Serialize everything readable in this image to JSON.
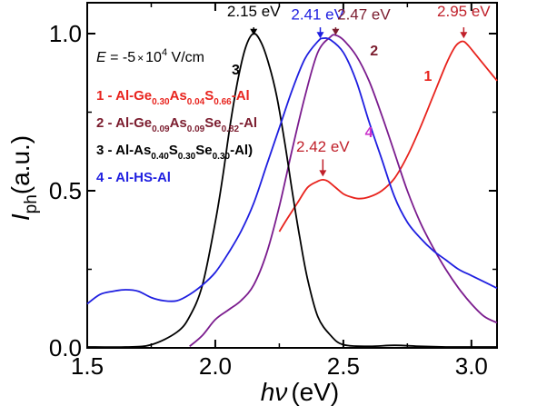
{
  "chart_data": {
    "type": "line",
    "xlabel_var": "hν",
    "xlabel_unit": "(eV)",
    "ylabel_var": "I",
    "ylabel_sub": "ph",
    "ylabel_unit": "(a.u.)",
    "xlim": [
      1.5,
      3.1
    ],
    "ylim": [
      0.0,
      1.05
    ],
    "x_ticks": [
      "1.5",
      "2.0",
      "2.5",
      "3.0"
    ],
    "y_ticks": [
      "0.0",
      "0.5",
      "1.0"
    ],
    "grid": false,
    "field_text": "E = -5 × 10⁴ V/cm",
    "field_parts": {
      "e": "E",
      "eq": " = -5",
      "times": "×",
      "base": "10",
      "exp": "4",
      "unit": " V/cm"
    },
    "legend": [
      {
        "color": "#e8231d",
        "parts": [
          "1 - Al-Ge",
          "0.30",
          "As",
          "0.04",
          "S",
          "0.66",
          "-Al"
        ]
      },
      {
        "color": "#7b1c2e",
        "parts": [
          "2 - Al-Ge",
          "0.09",
          "As",
          "0.09",
          "Se",
          "0.82",
          "-Al"
        ]
      },
      {
        "color": "#000000",
        "parts": [
          "3 - Al-As",
          "0.40",
          "S",
          "0.30",
          "Se",
          "0.30",
          "-Al)"
        ]
      },
      {
        "color": "#1f1fe0",
        "parts": [
          "4 - Al-HS-Al"
        ]
      }
    ],
    "curve_labels": [
      {
        "text": "1",
        "color": "#e8231d",
        "x": 2.83,
        "y": 0.85
      },
      {
        "text": "2",
        "color": "#7b1c2e",
        "x": 2.62,
        "y": 0.93
      },
      {
        "text": "3",
        "color": "#000000",
        "x": 2.08,
        "y": 0.87
      },
      {
        "text": "4",
        "color": "#cc33cc",
        "x": 2.6,
        "y": 0.67
      }
    ],
    "peak_labels": [
      {
        "text": "2.15 eV",
        "color": "#000000",
        "tx": 2.15,
        "ty": 1.055,
        "ax": 2.15,
        "ay_from": 1.02,
        "ay_to": 0.995
      },
      {
        "text": "2.41 eV",
        "color": "#1f1fe0",
        "tx": 2.4,
        "ty": 1.045,
        "ax": 2.41,
        "ay_from": 1.02,
        "ay_to": 0.985
      },
      {
        "text": "2.47 eV",
        "color": "#7b1c2e",
        "tx": 2.58,
        "ty": 1.045,
        "ax": 2.47,
        "ay_from": 1.02,
        "ay_to": 0.995
      },
      {
        "text": "2.95 eV",
        "color": "#c0202a",
        "tx": 2.97,
        "ty": 1.055,
        "ax": 2.97,
        "ay_from": 1.02,
        "ay_to": 0.985
      },
      {
        "text": "2.42 eV",
        "color": "#c0202a",
        "tx": 2.42,
        "ty": 0.625,
        "ax": 2.42,
        "ay_from": 0.6,
        "ay_to": 0.545
      }
    ],
    "series": [
      {
        "name": "1",
        "color": "#e8231d",
        "x": [
          2.25,
          2.28,
          2.32,
          2.36,
          2.4,
          2.42,
          2.44,
          2.47,
          2.5,
          2.53,
          2.56,
          2.6,
          2.65,
          2.7,
          2.75,
          2.8,
          2.85,
          2.9,
          2.93,
          2.95,
          2.97,
          2.99,
          3.02,
          3.05,
          3.08,
          3.1
        ],
        "y": [
          0.37,
          0.41,
          0.46,
          0.51,
          0.53,
          0.535,
          0.53,
          0.51,
          0.49,
          0.48,
          0.475,
          0.48,
          0.5,
          0.54,
          0.61,
          0.7,
          0.8,
          0.9,
          0.95,
          0.97,
          0.975,
          0.96,
          0.93,
          0.9,
          0.87,
          0.85
        ]
      },
      {
        "name": "2",
        "color": "#7b1c8e",
        "x": [
          1.9,
          1.95,
          2.0,
          2.05,
          2.1,
          2.15,
          2.2,
          2.25,
          2.3,
          2.35,
          2.4,
          2.45,
          2.47,
          2.5,
          2.55,
          2.6,
          2.65,
          2.7,
          2.75,
          2.8,
          2.85,
          2.9,
          2.95,
          3.0,
          3.05,
          3.1
        ],
        "y": [
          0.005,
          0.04,
          0.09,
          0.12,
          0.15,
          0.2,
          0.3,
          0.45,
          0.63,
          0.8,
          0.94,
          0.99,
          0.995,
          0.98,
          0.93,
          0.85,
          0.74,
          0.62,
          0.5,
          0.4,
          0.32,
          0.25,
          0.19,
          0.14,
          0.1,
          0.08
        ]
      },
      {
        "name": "3",
        "color": "#000000",
        "x": [
          1.5,
          1.65,
          1.75,
          1.85,
          1.9,
          1.95,
          2.0,
          2.03,
          2.06,
          2.09,
          2.12,
          2.15,
          2.18,
          2.21,
          2.24,
          2.27,
          2.3,
          2.33,
          2.36,
          2.4,
          2.45,
          2.5,
          2.6,
          2.7,
          2.8,
          2.9,
          3.0,
          3.1
        ],
        "y": [
          0.0,
          0.0,
          0.01,
          0.05,
          0.1,
          0.2,
          0.4,
          0.55,
          0.72,
          0.86,
          0.96,
          1.0,
          0.97,
          0.9,
          0.8,
          0.66,
          0.5,
          0.35,
          0.22,
          0.1,
          0.04,
          0.01,
          0.005,
          0.008,
          0.005,
          0.003,
          0.0,
          0.0
        ]
      },
      {
        "name": "4",
        "color": "#1f1fe0",
        "x": [
          1.5,
          1.55,
          1.6,
          1.65,
          1.7,
          1.75,
          1.8,
          1.85,
          1.9,
          1.95,
          2.0,
          2.05,
          2.1,
          2.15,
          2.2,
          2.25,
          2.3,
          2.35,
          2.4,
          2.42,
          2.45,
          2.5,
          2.55,
          2.6,
          2.65,
          2.7,
          2.75,
          2.8,
          2.85,
          2.9,
          2.95,
          3.0,
          3.05,
          3.1
        ],
        "y": [
          0.14,
          0.17,
          0.18,
          0.185,
          0.18,
          0.16,
          0.15,
          0.15,
          0.17,
          0.2,
          0.24,
          0.3,
          0.37,
          0.46,
          0.58,
          0.7,
          0.82,
          0.92,
          0.975,
          0.985,
          0.98,
          0.94,
          0.85,
          0.72,
          0.6,
          0.48,
          0.4,
          0.35,
          0.31,
          0.28,
          0.25,
          0.23,
          0.21,
          0.19
        ]
      }
    ]
  }
}
